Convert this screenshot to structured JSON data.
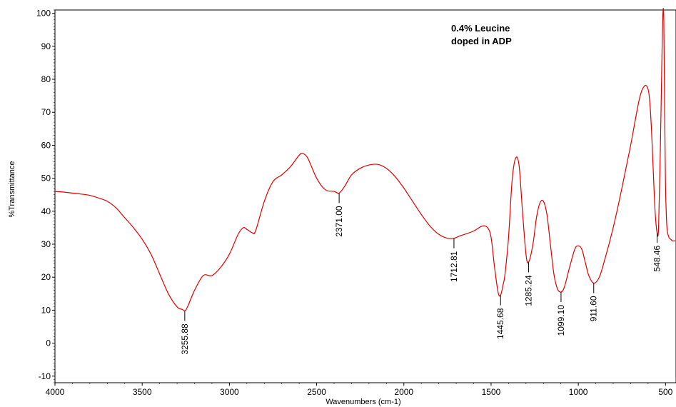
{
  "chart_data": {
    "type": "line",
    "xlabel": "Wavenumbers (cm-1)",
    "ylabel": "%Transmittance",
    "xlim": [
      4000,
      440
    ],
    "ylim": [
      -12,
      101
    ],
    "x_reversed": true,
    "x_ticks": [
      4000,
      3500,
      3000,
      2500,
      2000,
      1500,
      1000,
      500
    ],
    "y_ticks": [
      -10,
      0,
      10,
      20,
      30,
      40,
      50,
      60,
      70,
      80,
      90,
      100
    ],
    "annotation": [
      "0.4% Leucine",
      "doped in ADP"
    ],
    "line_color": "#e00000",
    "grid": false,
    "series": [
      {
        "x": [
          4000,
          3950,
          3900,
          3850,
          3800,
          3750,
          3700,
          3650,
          3600,
          3550,
          3500,
          3450,
          3400,
          3350,
          3300,
          3270,
          3255.88,
          3240,
          3200,
          3150,
          3100,
          3050,
          3000,
          2950,
          2920,
          2900,
          2870,
          2850,
          2800,
          2750,
          2700,
          2650,
          2600,
          2580,
          2550,
          2500,
          2450,
          2400,
          2371,
          2340,
          2300,
          2250,
          2200,
          2150,
          2100,
          2050,
          2000,
          1950,
          1900,
          1850,
          1800,
          1750,
          1712.81,
          1680,
          1650,
          1600,
          1550,
          1520,
          1500,
          1480,
          1460,
          1445.68,
          1430,
          1420,
          1400,
          1380,
          1360,
          1340,
          1320,
          1300,
          1285.24,
          1260,
          1240,
          1220,
          1200,
          1180,
          1160,
          1140,
          1120,
          1099.1,
          1080,
          1050,
          1020,
          1000,
          980,
          960,
          940,
          911.6,
          880,
          850,
          800,
          750,
          700,
          650,
          620,
          600,
          590,
          580,
          570,
          560,
          548.46,
          540,
          530,
          520,
          515,
          510,
          505,
          500,
          495,
          490,
          480,
          470,
          460,
          450,
          440
        ],
        "y": [
          46,
          45.8,
          45.5,
          45.2,
          44.8,
          44,
          43,
          41,
          38,
          35,
          31.5,
          27,
          21,
          15,
          11,
          10.2,
          9.8,
          11,
          16,
          20.5,
          20.5,
          23,
          27,
          33,
          35,
          34.5,
          33.5,
          34,
          43,
          49,
          51,
          53.5,
          57,
          57.5,
          56,
          50,
          46.5,
          46,
          45.5,
          47.5,
          51,
          53,
          54,
          54.2,
          53,
          50.5,
          47,
          43,
          39,
          35.5,
          33,
          31.8,
          31.8,
          32.5,
          33,
          34,
          35.5,
          35,
          32,
          23,
          15.5,
          14.5,
          18,
          21,
          32,
          49,
          56,
          54,
          40,
          27,
          24.5,
          30,
          38,
          42.5,
          43,
          39,
          30,
          21,
          16.5,
          15.5,
          17,
          23,
          28.5,
          29.5,
          28.5,
          24.5,
          20.5,
          18.2,
          20,
          25,
          35,
          47,
          60,
          74,
          78,
          77,
          73,
          64,
          52,
          40,
          33.5,
          35,
          58,
          88,
          100,
          98,
          70,
          48,
          38,
          34,
          32,
          31.5,
          31,
          31,
          31
        ]
      }
    ],
    "peaks": [
      {
        "x": 3255.88,
        "label": "3255.88",
        "y": 9.8
      },
      {
        "x": 2371.0,
        "label": "2371.00",
        "y": 45.5
      },
      {
        "x": 1712.81,
        "label": "1712.81",
        "y": 31.8
      },
      {
        "x": 1445.68,
        "label": "1445.68",
        "y": 14.5
      },
      {
        "x": 1285.24,
        "label": "1285.24",
        "y": 24.5
      },
      {
        "x": 1099.1,
        "label": "1099.10",
        "y": 15.5
      },
      {
        "x": 911.6,
        "label": "911.60",
        "y": 18.2
      },
      {
        "x": 548.46,
        "label": "548.46",
        "y": 33.5
      }
    ]
  }
}
